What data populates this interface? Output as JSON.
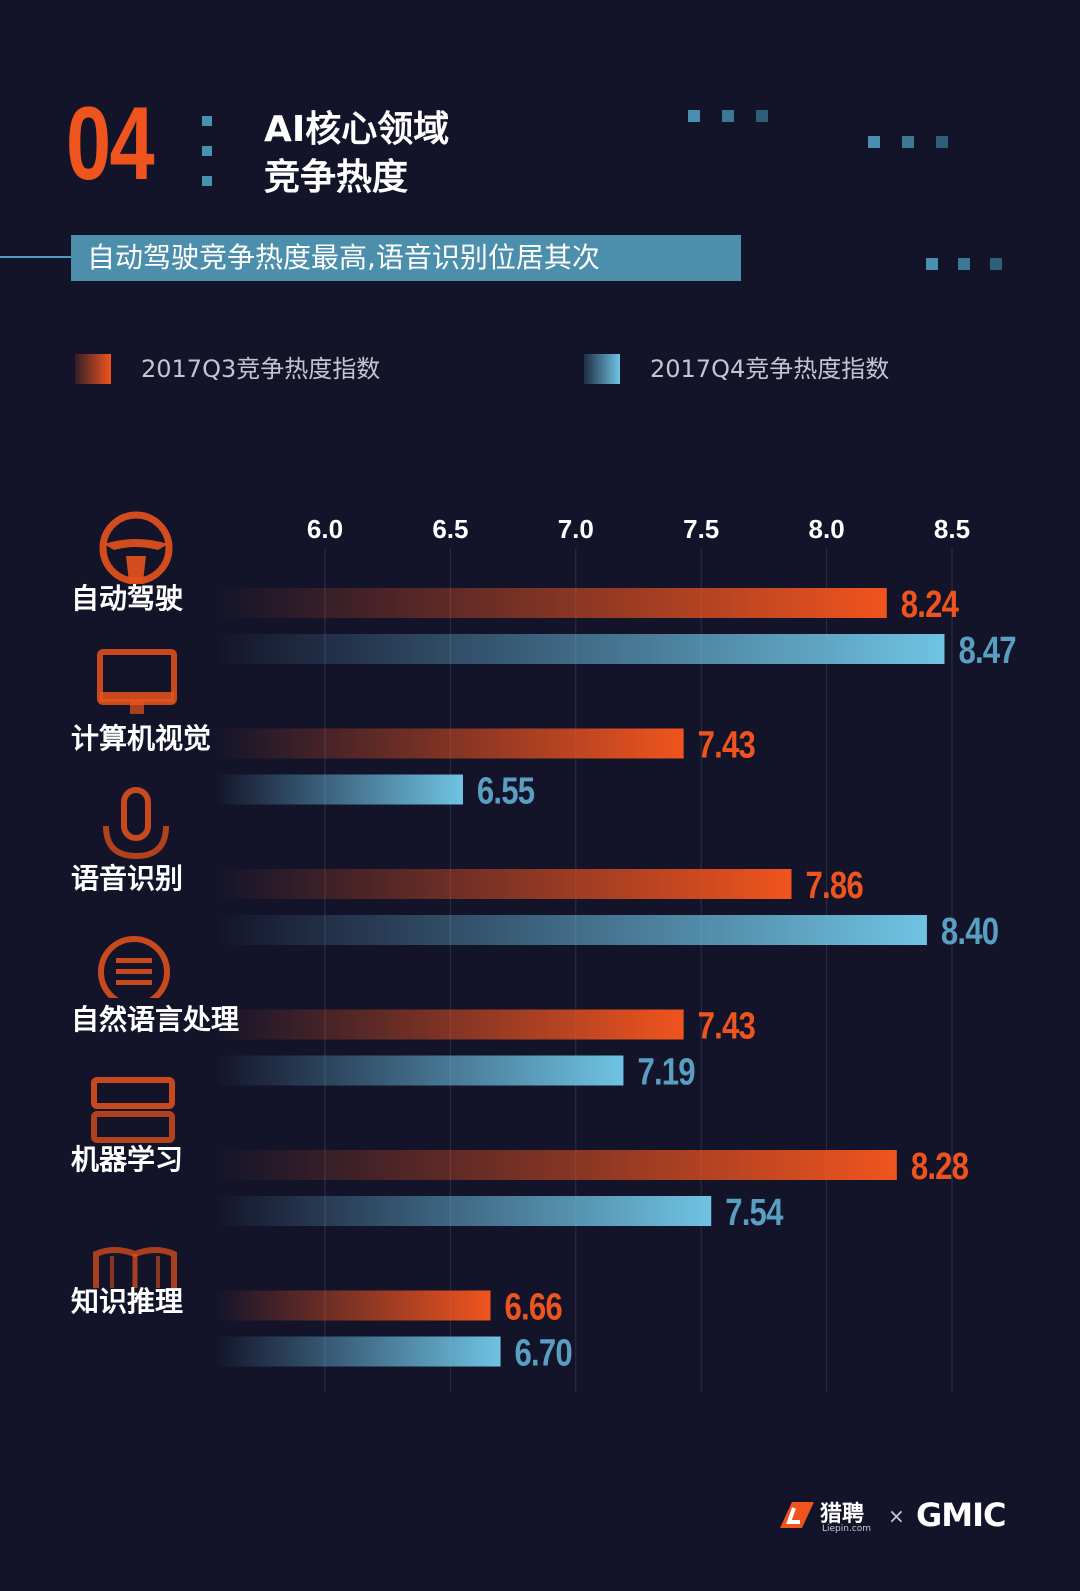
{
  "header": {
    "section_number": "04",
    "title_line1": "AI核心领域",
    "title_line2": "竞争热度",
    "subtitle": "自动驾驶竞争热度最高,语音识别位居其次"
  },
  "legend": [
    {
      "label": "2017Q3竞争热度指数",
      "color": "#f0541e"
    },
    {
      "label": "2017Q4竞争热度指数",
      "color": "#6fc3e3"
    }
  ],
  "chart_data": {
    "type": "bar",
    "orientation": "horizontal",
    "title": "AI核心领域竞争热度",
    "categories": [
      "自动驾驶",
      "计算机视觉",
      "语音识别",
      "自然语言处理",
      "机器学习",
      "知识推理"
    ],
    "series": [
      {
        "name": "2017Q3竞争热度指数",
        "values": [
          8.24,
          7.43,
          7.86,
          7.43,
          8.28,
          6.66
        ],
        "labels": [
          "8.24",
          "7.43",
          "7.86",
          "7.43",
          "8.28",
          "6.66"
        ]
      },
      {
        "name": "2017Q4竞争热度指数",
        "values": [
          8.47,
          6.55,
          8.4,
          7.19,
          7.54,
          6.7
        ],
        "labels": [
          "8.47",
          "6.55",
          "8.40",
          "7.19",
          "7.54",
          "6.70"
        ]
      }
    ],
    "xticks": [
      "6.0",
      "6.5",
      "7.0",
      "7.5",
      "8.0",
      "8.5"
    ],
    "xlim": [
      6.0,
      8.5
    ],
    "grid": true,
    "legend_position": "top",
    "colors": {
      "q3": "#f0541e",
      "q4": "#6fc3e3",
      "q3_value": "#f0541e",
      "q4_value": "#5a9ec2"
    }
  },
  "icons": [
    "steering-wheel-icon",
    "monitor-icon",
    "microphone-icon",
    "speech-bubble-icon",
    "server-icon",
    "book-icon"
  ],
  "footer": {
    "brand": "猎聘",
    "brand_url": "Liepin.com",
    "separator": "×",
    "partner": "GMIC"
  }
}
